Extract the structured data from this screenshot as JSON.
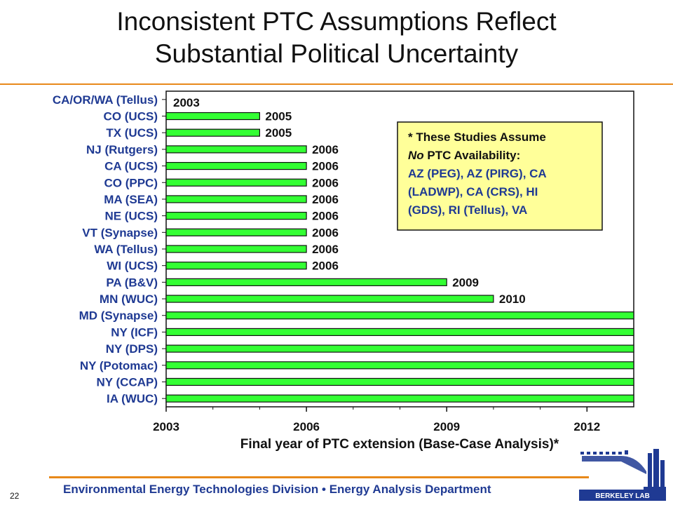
{
  "slide": {
    "title_line1": "Inconsistent PTC Assumptions Reflect",
    "title_line2": "Substantial Political Uncertainty",
    "footer": "Environmental Energy Technologies Division  •  Energy Analysis Department",
    "page_number": "22",
    "logo_text": "BERKELEY LAB",
    "accent_color": "#e8891a",
    "footer_color": "#1f3a93"
  },
  "chart_data": {
    "type": "bar",
    "orientation": "horizontal",
    "categories": [
      "CA/OR/WA (Tellus)",
      "CO (UCS)",
      "TX (UCS)",
      "NJ (Rutgers)",
      "CA (UCS)",
      "CO (PPC)",
      "MA (SEA)",
      "NE (UCS)",
      "VT (Synapse)",
      "WA (Tellus)",
      "WI (UCS)",
      "PA (B&V)",
      "MN (WUC)",
      "MD (Synapse)",
      "NY (ICF)",
      "NY (DPS)",
      "NY (Potomac)",
      "NY (CCAP)",
      "IA (WUC)"
    ],
    "values": [
      2003,
      2005,
      2005,
      2006,
      2006,
      2006,
      2006,
      2006,
      2006,
      2006,
      2006,
      2009,
      2010,
      2013,
      2013,
      2013,
      2013,
      2013,
      2013
    ],
    "data_labels": [
      "2003",
      "2005",
      "2005",
      "2006",
      "2006",
      "2006",
      "2006",
      "2006",
      "2006",
      "2006",
      "2006",
      "2009",
      "2010",
      "",
      "",
      "",
      "",
      "",
      ""
    ],
    "xlabel": "Final year of PTC extension (Base-Case Analysis)*",
    "x_ticks": [
      "2003",
      "2006",
      "2009",
      "2012"
    ],
    "xlim": [
      2003,
      2013
    ],
    "bar_color": "#33ff33",
    "category_label_color": "#1f3a93",
    "grid": false,
    "annotation": {
      "lines": [
        {
          "text": "* These Studies Assume",
          "color": "#111111"
        },
        {
          "text": "No PTC Availability:",
          "color": "#111111"
        },
        {
          "text": "AZ (PEG), AZ (PIRG), CA",
          "color": "#1f3a93"
        },
        {
          "text": "(LADWP), CA (CRS), HI",
          "color": "#1f3a93"
        },
        {
          "text": "(GDS), RI (Tellus), VA",
          "color": "#1f3a93"
        }
      ],
      "background": "#ffff99",
      "placement": "top-right"
    }
  }
}
